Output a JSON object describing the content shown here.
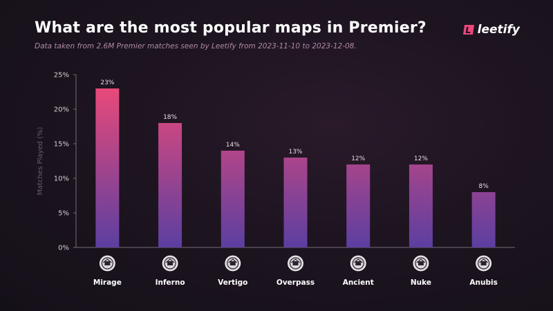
{
  "header": {
    "title": "What are the most popular maps in Premier?",
    "subtitle": "Data taken from 2.6M Premier matches seen by Leetify from 2023-11-10 to 2023-12-08.",
    "logo_text": "leetify",
    "logo_icon": "leetify-logo-icon"
  },
  "colors": {
    "bar_top": "#e8497a",
    "bar_bottom": "#5b3fa0",
    "accent": "#e8497a"
  },
  "chart_data": {
    "type": "bar",
    "title": "What are the most popular maps in Premier?",
    "ylabel": "Matches Played (%)",
    "xlabel": "",
    "categories": [
      "Mirage",
      "Inferno",
      "Vertigo",
      "Overpass",
      "Ancient",
      "Nuke",
      "Anubis"
    ],
    "values": [
      23,
      18,
      14,
      13,
      12,
      12,
      8
    ],
    "value_labels": [
      "23%",
      "18%",
      "14%",
      "13%",
      "12%",
      "12%",
      "8%"
    ],
    "yticks": [
      "0%",
      "5%",
      "10%",
      "15%",
      "20%",
      "25%"
    ],
    "ylim": [
      0,
      25
    ],
    "grid": false,
    "legend": "none",
    "icons": [
      "mirage-map-icon",
      "inferno-map-icon",
      "vertigo-map-icon",
      "overpass-map-icon",
      "ancient-map-icon",
      "nuke-map-icon",
      "anubis-map-icon"
    ]
  }
}
